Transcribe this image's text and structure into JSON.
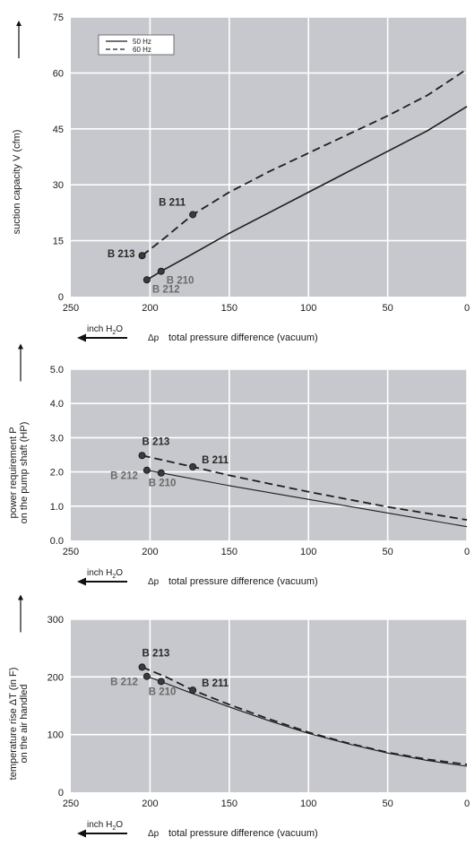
{
  "chart_data": [
    {
      "type": "line",
      "ylabel": "suction capacity V (cfm)",
      "xlabel": "total pressure difference (vacuum)",
      "xlabel_symbol": "Δp",
      "unit_label": "inch H",
      "unit_sub": "2",
      "unit_tail": "O",
      "xlim": [
        250,
        0
      ],
      "ylim": [
        0,
        75
      ],
      "xticks": [
        "250",
        "200",
        "150",
        "100",
        "50",
        "0"
      ],
      "yticks": [
        "0",
        "15",
        "30",
        "45",
        "60",
        "75"
      ],
      "xtick_values": [
        250,
        200,
        150,
        100,
        50,
        0
      ],
      "ytick_values": [
        0,
        15,
        30,
        45,
        60,
        75
      ],
      "legend": {
        "placement": "top-left",
        "entries": [
          {
            "label": "50 Hz",
            "style": "solid"
          },
          {
            "label": "60 Hz",
            "style": "dashed"
          }
        ]
      },
      "series": [
        {
          "name": "50 Hz",
          "style": "solid",
          "x": [
            202,
            193,
            175,
            150,
            125,
            100,
            75,
            50,
            25,
            0
          ],
          "y": [
            4.5,
            6.8,
            11,
            17,
            22.5,
            28,
            33.5,
            39,
            44.5,
            51
          ]
        },
        {
          "name": "60 Hz",
          "style": "dashed",
          "x": [
            205,
            190,
            173,
            150,
            125,
            100,
            75,
            50,
            25,
            0
          ],
          "y": [
            11,
            16,
            22,
            28,
            33.5,
            38.5,
            43.5,
            48.5,
            54,
            61
          ]
        }
      ],
      "points": [
        {
          "label": "B 213",
          "x": 205,
          "y": 11,
          "tone": "dark",
          "side": "left"
        },
        {
          "label": "B 211",
          "x": 173,
          "y": 22,
          "tone": "dark",
          "side": "above-left"
        },
        {
          "label": "B 210",
          "x": 193,
          "y": 6.8,
          "tone": "grey",
          "side": "below-right"
        },
        {
          "label": "B 212",
          "x": 202,
          "y": 4.5,
          "tone": "grey",
          "side": "below-right"
        }
      ]
    },
    {
      "type": "line",
      "ylabel": "power requirement P",
      "ylabel2": "on the pump shaft (HP)",
      "xlabel": "total pressure difference (vacuum)",
      "xlabel_symbol": "Δp",
      "unit_label": "inch H",
      "unit_sub": "2",
      "unit_tail": "O",
      "xlim": [
        250,
        0
      ],
      "ylim": [
        0,
        5
      ],
      "xticks": [
        "250",
        "200",
        "150",
        "100",
        "50",
        "0"
      ],
      "yticks": [
        "0.0",
        "1.0",
        "2.0",
        "3.0",
        "4.0",
        "5.0"
      ],
      "xtick_values": [
        250,
        200,
        150,
        100,
        50,
        0
      ],
      "ytick_values": [
        0,
        1,
        2,
        3,
        4,
        5
      ],
      "series": [
        {
          "name": "50 Hz",
          "style": "solid",
          "x": [
            202,
            193,
            150,
            100,
            50,
            0
          ],
          "y": [
            2.05,
            1.97,
            1.6,
            1.2,
            0.8,
            0.4
          ]
        },
        {
          "name": "60 Hz",
          "style": "dashed",
          "x": [
            205,
            173,
            150,
            100,
            50,
            0
          ],
          "y": [
            2.48,
            2.15,
            1.9,
            1.42,
            0.98,
            0.6
          ]
        }
      ],
      "points": [
        {
          "label": "B 213",
          "x": 205,
          "y": 2.48,
          "tone": "dark",
          "side": "above"
        },
        {
          "label": "B 211",
          "x": 173,
          "y": 2.15,
          "tone": "dark",
          "side": "above-right"
        },
        {
          "label": "B 212",
          "x": 202,
          "y": 2.05,
          "tone": "grey",
          "side": "below-left"
        },
        {
          "label": "B 210",
          "x": 193,
          "y": 1.97,
          "tone": "grey",
          "side": "below"
        }
      ]
    },
    {
      "type": "line",
      "ylabel": "temperature rise ΔT  (in F)",
      "ylabel2": "on the air handled",
      "xlabel": "total pressure difference (vacuum)",
      "xlabel_symbol": "Δp",
      "unit_label": "inch H",
      "unit_sub": "2",
      "unit_tail": "O",
      "xlim": [
        250,
        0
      ],
      "ylim": [
        0,
        300
      ],
      "xticks": [
        "250",
        "200",
        "150",
        "100",
        "50",
        "0"
      ],
      "yticks": [
        "0",
        "100",
        "200",
        "300"
      ],
      "xtick_values": [
        250,
        200,
        150,
        100,
        50,
        0
      ],
      "ytick_values": [
        0,
        100,
        200,
        300
      ],
      "series": [
        {
          "name": "50 Hz",
          "style": "solid",
          "x": [
            202,
            193,
            175,
            150,
            125,
            100,
            75,
            50,
            25,
            0
          ],
          "y": [
            201,
            192,
            173,
            148,
            124,
            102,
            84,
            68,
            55,
            45
          ]
        },
        {
          "name": "60 Hz",
          "style": "dashed",
          "x": [
            205,
            190,
            173,
            150,
            125,
            100,
            75,
            50,
            25,
            0
          ],
          "y": [
            217,
            200,
            177,
            152,
            127,
            104,
            85,
            69,
            57,
            48
          ]
        }
      ],
      "points": [
        {
          "label": "B 213",
          "x": 205,
          "y": 217,
          "tone": "dark",
          "side": "above"
        },
        {
          "label": "B 211",
          "x": 173,
          "y": 177,
          "tone": "dark",
          "side": "above-right"
        },
        {
          "label": "B 212",
          "x": 202,
          "y": 201,
          "tone": "grey",
          "side": "below-left"
        },
        {
          "label": "B 210",
          "x": 193,
          "y": 192,
          "tone": "grey",
          "side": "below"
        }
      ]
    }
  ],
  "colors": {
    "plot_bg": "#c6c8cd",
    "grid": "#ffffff",
    "line": "#1e1e1e",
    "marker": "#3a3a3a",
    "label_dark": "#2a2a2a",
    "label_grey": "#6b6b6b"
  }
}
